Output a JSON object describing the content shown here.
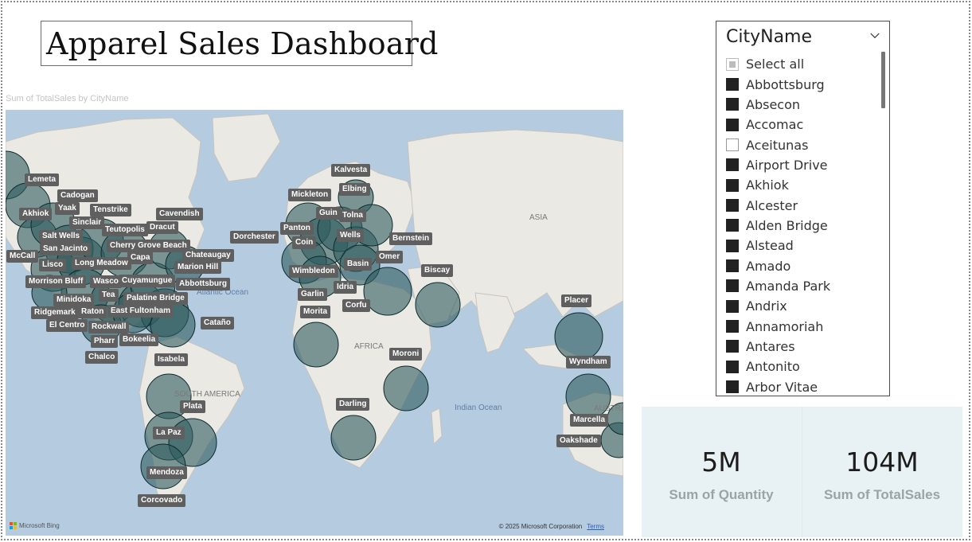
{
  "dashboard": {
    "title": "Apparel Sales Dashboard"
  },
  "map": {
    "title": "Sum of TotalSales by CityName",
    "regions": {
      "asia": "ASIA",
      "africa": "AFRICA",
      "south_america": "SOUTH AMERICA",
      "australia": "AUSTRA"
    },
    "oceans": {
      "atlantic": "Atlantic Ocean",
      "indian": "Indian Ocean"
    },
    "attribution": {
      "brand": "Microsoft Bing",
      "copyright": "© 2025 Microsoft Corporation",
      "terms": "Terms"
    },
    "bubble_color": "#2e5b5e",
    "city_labels": [
      "Lemeta",
      "Cadogan",
      "Akhiok",
      "Yaak",
      "Tenstrike",
      "Sinclair",
      "Teutopolis",
      "Cavendish",
      "Dracut",
      "Salt Wells",
      "San Jacinto",
      "Cherry Grove Beach",
      "McCall",
      "Capa",
      "Chateaugay",
      "Lisco",
      "Long Meadow",
      "Marion Hill",
      "Morrison Bluff",
      "Wasco",
      "Cuyamungue",
      "Abbottsburg",
      "Tea",
      "Minidoka",
      "Palatine Bridge",
      "Ridgemark",
      "Raton",
      "East Fultonham",
      "El Centro",
      "Rockwall",
      "Cataño",
      "Pharr",
      "Bokeelia",
      "Chalco",
      "Isabela",
      "Plata",
      "La Paz",
      "Mendoza",
      "Corcovado",
      "Kalvesta",
      "Elbing",
      "Mickleton",
      "Guin",
      "Tolna",
      "Dorchester",
      "Panton",
      "Wells",
      "Bernstein",
      "Coin",
      "Omer",
      "Basin",
      "Wimbledon",
      "Idria",
      "Biscay",
      "Garlin",
      "Morita",
      "Corfu",
      "Moroni",
      "Darling",
      "Placer",
      "Wyndham",
      "Marcella",
      "Oakshade"
    ]
  },
  "slicer": {
    "header": "CityName",
    "items": [
      {
        "label": "Select all",
        "state": "partial"
      },
      {
        "label": "Abbottsburg",
        "state": "checked"
      },
      {
        "label": "Absecon",
        "state": "checked"
      },
      {
        "label": "Accomac",
        "state": "checked"
      },
      {
        "label": "Aceitunas",
        "state": "unchecked"
      },
      {
        "label": "Airport Drive",
        "state": "checked"
      },
      {
        "label": "Akhiok",
        "state": "checked"
      },
      {
        "label": "Alcester",
        "state": "checked"
      },
      {
        "label": "Alden Bridge",
        "state": "checked"
      },
      {
        "label": "Alstead",
        "state": "checked"
      },
      {
        "label": "Amado",
        "state": "checked"
      },
      {
        "label": "Amanda Park",
        "state": "checked"
      },
      {
        "label": "Andrix",
        "state": "checked"
      },
      {
        "label": "Annamoriah",
        "state": "checked"
      },
      {
        "label": "Antares",
        "state": "checked"
      },
      {
        "label": "Antonito",
        "state": "checked"
      },
      {
        "label": "Arbor Vitae",
        "state": "checked"
      }
    ]
  },
  "cards": [
    {
      "value": "5M",
      "caption": "Sum of Quantity"
    },
    {
      "value": "104M",
      "caption": "Sum of TotalSales"
    }
  ],
  "colors": {
    "card_bg": "#e8f2f4",
    "land": "#ebe9e4",
    "water": "#b5cbe0"
  }
}
